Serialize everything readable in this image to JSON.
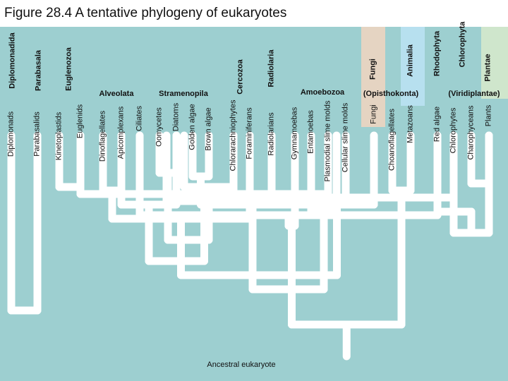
{
  "title": "Figure 28.4 A tentative phylogeny of eukaryotes",
  "colors": {
    "background": "#9dcfd0",
    "branch": "#ffffff",
    "text": "#111111",
    "fungi_band": "#e5d4c2",
    "animalia_band": "#b7e0ef",
    "plantae_band": "#cfe6cc"
  },
  "groups": [
    "Diplomonadida",
    "Parabasala",
    "Euglenozoa",
    "Cercozoa",
    "Radiolaria",
    "Fungi",
    "Animalia",
    "Rhodophyta",
    "Chlorophyta",
    "Plantae"
  ],
  "supergroups": [
    "Alveolata",
    "Stramenopila",
    "Amoebozoa",
    "(Opisthokonta)",
    "(Viridiplantae)"
  ],
  "clades": [
    "Diplomonads",
    "Parabasalids",
    "Kinetoplastids",
    "Euglenids",
    "Dinoflagellates",
    "Apicomplexans",
    "Ciliates",
    "Oomycetes",
    "Diatoms",
    "Golden algae",
    "Brown algae",
    "Chlorarachniophytes",
    "Foraminiferans",
    "Radiolarians",
    "Gymnamoebas",
    "Entamoebas",
    "Plasmodial slime molds",
    "Cellular slime molds",
    "Fungi",
    "Choanoflagellates",
    "Metazoans",
    "Red algae",
    "Chlorophytes",
    "Charophyceans",
    "Plants"
  ],
  "root_label": "Ancestral eukaryote"
}
